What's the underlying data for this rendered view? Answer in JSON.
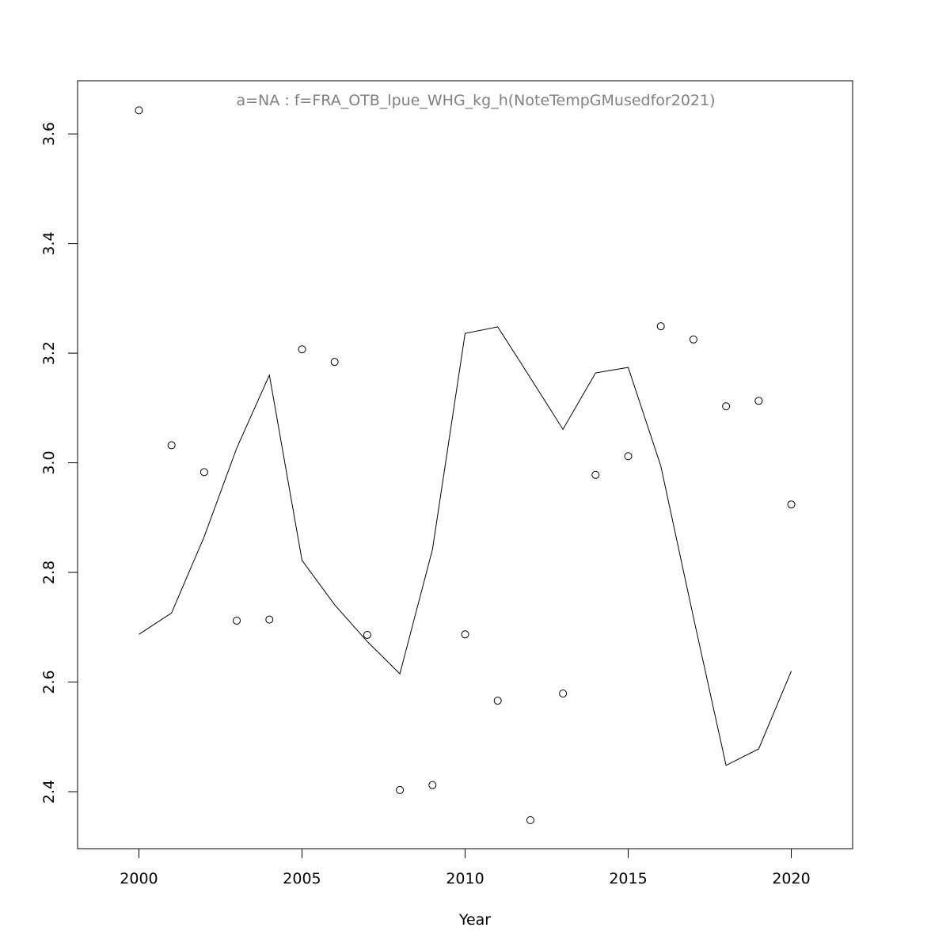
{
  "chart_data": {
    "type": "line",
    "title": "a=NA  :  f=FRA_OTB_lpue_WHG_kg_h(NoteTempGMusedfor2021)",
    "x_label": "Year",
    "x": [
      2000,
      2001,
      2002,
      2003,
      2004,
      2005,
      2006,
      2007,
      2008,
      2009,
      2010,
      2011,
      2012,
      2013,
      2014,
      2015,
      2016,
      2017,
      2018,
      2019,
      2020
    ],
    "series": [
      {
        "style": "points",
        "color": "#000000",
        "values": [
          3.643,
          3.032,
          2.983,
          2.712,
          2.714,
          3.207,
          3.184,
          2.686,
          2.403,
          2.412,
          2.687,
          2.566,
          2.348,
          2.579,
          2.978,
          3.012,
          3.249,
          3.225,
          3.103,
          3.113,
          2.924
        ]
      },
      {
        "style": "line",
        "color": "#000000",
        "values": [
          2.687,
          2.726,
          2.865,
          3.027,
          3.16,
          2.822,
          2.741,
          2.674,
          2.615,
          2.842,
          3.236,
          3.248,
          3.155,
          3.061,
          3.164,
          3.174,
          2.994,
          2.718,
          2.448,
          2.478,
          2.62
        ]
      }
    ],
    "xlim": [
      1998.12,
      2021.88
    ],
    "ylim": [
      2.296,
      3.697
    ],
    "xticks": [
      2000,
      2005,
      2010,
      2015,
      2020
    ],
    "yticks": [
      2.4,
      2.6,
      2.8,
      {
        "value": 3,
        "label": "3.0"
      },
      3.2,
      3.4,
      3.6
    ],
    "title_color": "#808080"
  }
}
